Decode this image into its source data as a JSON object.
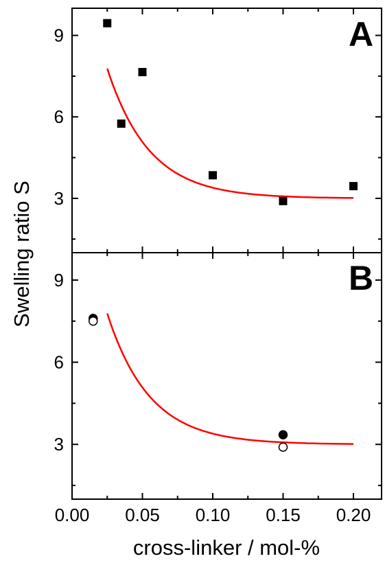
{
  "chart_data": [
    {
      "panel": "A",
      "type": "scatter",
      "ylabel": "Swelling ratio S",
      "xlim": [
        0.0,
        0.22
      ],
      "ylim": [
        1.0,
        10.0
      ],
      "yticks": [
        "3",
        "6",
        "9"
      ],
      "x_ticks_labeled": false,
      "series": [
        {
          "marker": "filled-square",
          "color": "#000000",
          "x": [
            0.025,
            0.035,
            0.05,
            0.1,
            0.15,
            0.2
          ],
          "y": [
            9.45,
            5.75,
            7.65,
            3.85,
            2.9,
            3.45
          ]
        }
      ],
      "fit": {
        "color": "#ff0000",
        "model": "exponential-decay",
        "y0": 3.0,
        "a": 11.0,
        "t": 0.03,
        "x_range": [
          0.025,
          0.2
        ]
      }
    },
    {
      "panel": "B",
      "type": "scatter",
      "xlabel": "cross-linker / mol-%",
      "xlim": [
        0.0,
        0.22
      ],
      "ylim": [
        1.0,
        10.0
      ],
      "xticks": [
        "0.00",
        "0.05",
        "0.10",
        "0.15",
        "0.20"
      ],
      "yticks": [
        "3",
        "6",
        "9"
      ],
      "series": [
        {
          "marker": "filled-circle",
          "color": "#000000",
          "x": [
            0.015,
            0.15
          ],
          "y": [
            7.6,
            3.35
          ]
        },
        {
          "marker": "open-circle",
          "color": "#000000",
          "x": [
            0.015,
            0.15
          ],
          "y": [
            7.5,
            2.9
          ]
        }
      ],
      "fit": {
        "color": "#ff0000",
        "model": "exponential-decay",
        "y0": 3.0,
        "a": 11.0,
        "t": 0.03,
        "x_range": [
          0.025,
          0.2
        ]
      }
    }
  ],
  "labels": {
    "panel_a": "A",
    "panel_b": "B",
    "ylabel": "Swelling ratio S",
    "xlabel": "cross-linker / mol-%"
  }
}
